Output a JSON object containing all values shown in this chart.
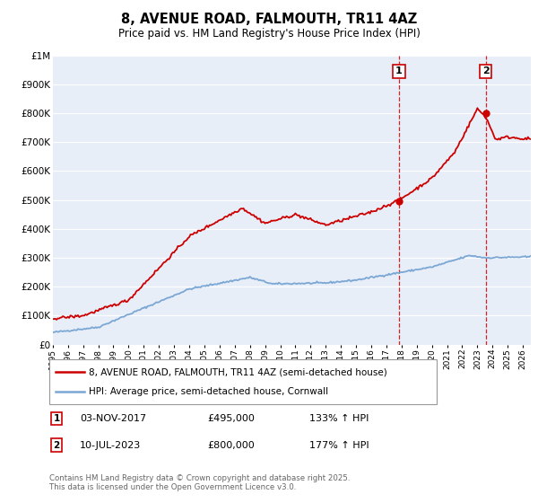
{
  "title": "8, AVENUE ROAD, FALMOUTH, TR11 4AZ",
  "subtitle": "Price paid vs. HM Land Registry's House Price Index (HPI)",
  "hpi_label": "HPI: Average price, semi-detached house, Cornwall",
  "property_label": "8, AVENUE ROAD, FALMOUTH, TR11 4AZ (semi-detached house)",
  "property_color": "#cc0000",
  "hpi_color": "#7ba7d4",
  "background_color": "#e8eef8",
  "point1_date": "03-NOV-2017",
  "point1_price": 495000,
  "point1_label": "133% ↑ HPI",
  "point2_date": "10-JUL-2023",
  "point2_price": 800000,
  "point2_label": "177% ↑ HPI",
  "footer": "Contains HM Land Registry data © Crown copyright and database right 2025.\nThis data is licensed under the Open Government Licence v3.0.",
  "ylim": [
    0,
    1000000
  ],
  "yticks": [
    0,
    100000,
    200000,
    300000,
    400000,
    500000,
    600000,
    700000,
    800000,
    900000,
    1000000
  ],
  "ytick_labels": [
    "£0",
    "£100K",
    "£200K",
    "£300K",
    "£400K",
    "£500K",
    "£600K",
    "£700K",
    "£800K",
    "£900K",
    "£1M"
  ],
  "sale1_x": 2017.833,
  "sale1_y": 495000,
  "sale2_x": 2023.542,
  "sale2_y": 800000,
  "xlim_left": 1995,
  "xlim_right": 2026.5
}
